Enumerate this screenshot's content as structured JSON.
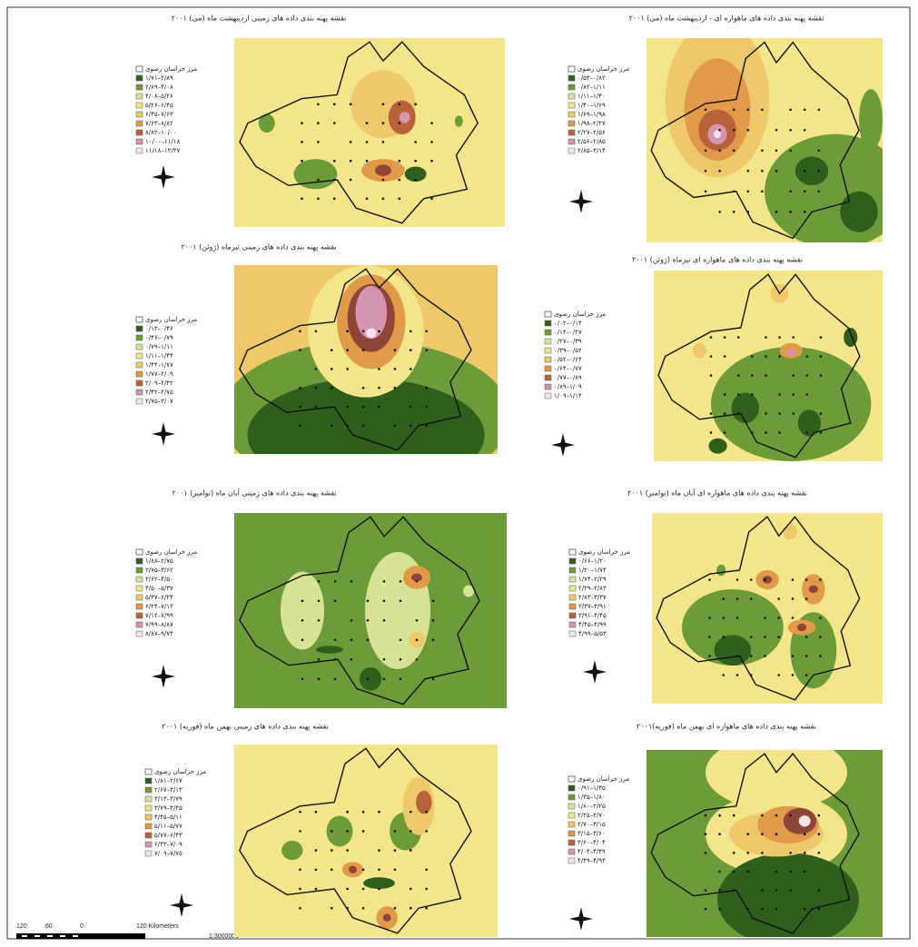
{
  "panels": [
    {
      "title": "نقشه پهنه بندی داده های زمینی اردیبهشت ماه (می) ۲۰۰۱",
      "legend_title": "مرز خراسان رضوی",
      "legend": [
        "۱/۷۱–۲/۸۹",
        "۲/۸۹–۴/۰۸",
        "۴/۰۸–۵/۲۶",
        "۵/۲۶–۶/۴۵",
        "۶/۴۵–۷/۶۳",
        "۷/۶۳–۸/۸۲",
        "۸/۸۲–۱۰/۰۰",
        "۱۰/۰۰–۱۱/۱۸",
        "۱۱/۱۸–۱۲/۳۷"
      ]
    },
    {
      "title": "نقشه پهنه بندی داده های ماهواره ای - اردیبهشت ماه (می) ۲۰۰۱",
      "legend_title": "مرز خراسان رضوی",
      "legend": [
        "۰/۵۳–۰/۸۲",
        "۰/۸۲–۱/۱۱",
        "۱/۱۱–۱/۴۰",
        "۱/۴۰–۱/۶۹",
        "۱/۶۹–۱/۹۸",
        "۱/۹۸–۲/۲۷",
        "۲/۲۷–۲/۵۶",
        "۲/۵۶–۲/۸۵",
        "۲/۸۵–۳/۱۴"
      ]
    },
    {
      "title": "نقشه پهنه بندی داده های زمینی تیرماه (ژوئن) ۲۰۰۱",
      "legend_title": "مرز خراسان رضوی",
      "legend": [
        "۰/۱۳–۰/۴۶",
        "۰/۴۶–۰/۷۹",
        "۰/۷۹–۱/۱۱",
        "۱/۱۱–۱/۴۴",
        "۱/۴۴–۱/۷۷",
        "۱/۷۷–۲/۰۹",
        "۲/۰۹–۲/۴۲",
        "۲/۴۲–۲/۷۵",
        "۲/۷۵–۳/۰۷"
      ]
    },
    {
      "title": "نقشه پهنه بندی داده های ماهواره ای تیرماه (ژوئن) ۲۰۰۱",
      "legend_title": "مرز خراسان رضوی",
      "legend": [
        "۰/۰۲–۰/۱۴",
        "۰/۱۴–۰/۲۷",
        "۰/۲۷–۰/۳۹",
        "۰/۳۹–۰/۵۲",
        "۰/۵۲–۰/۶۴",
        "۰/۶۴–۰/۷۷",
        "۰/۷۷–۰/۸۹",
        "۰/۸۹–۱/۰۹",
        "۱/۰۹–۱/۱۴"
      ]
    },
    {
      "title": "نقشه پهنه بندی داده های زمینی آبان ماه (نوامبر) ۲۰۰۱",
      "legend_title": "مرز خراسان رضوی",
      "legend": [
        "۱/۸۸–۲/۷۵",
        "۲/۷۵–۳/۶۲",
        "۳/۶۲–۴/۵۰",
        "۴/۵۰–۵/۳۷",
        "۵/۳۷–۶/۲۴",
        "۶/۲۴–۷/۱۲",
        "۷/۱۲–۷/۹۹",
        "۷/۹۹–۸/۸۷",
        "۸/۸۷–۹/۷۴"
      ]
    },
    {
      "title": "نقشه پهنه بندی داده های ماهواره ای آبان ماه (نوامبر) ۲۰۰۱",
      "legend_title": "مرز خراسان رضوی",
      "legend": [
        "۰/۶۶–۱/۲۰",
        "۱/۲۰–۱/۷۴",
        "۱/۷۴–۲/۲۹",
        "۲/۲۹–۲/۸۳",
        "۲/۸۳–۳/۳۷",
        "۳/۳۷–۳/۹۱",
        "۳/۹۱–۴/۴۵",
        "۴/۴۵–۴/۹۹",
        "۴/۹۹–۵/۵۳"
      ]
    },
    {
      "title": "نقشه پهنه بندی داده های زمینی بهمن ماه (فوریه) ۲۰۰۱",
      "legend_title": "مرز خراسان رضوی",
      "legend": [
        "۱/۸۱–۲/۶۷",
        "۲/۶۷–۳/۱۳",
        "۳/۱۳–۳/۷۹",
        "۳/۷۹–۴/۴۵",
        "۴/۴۵–۵/۱۱",
        "۵/۱۱–۵/۷۷",
        "۵/۷۷–۶/۴۳",
        "۶/۴۳–۷/۰۹",
        "۷/۰۹–۷/۷۵"
      ]
    },
    {
      "title": "نقشه پهنه بندی داده های ماهواره ای بهمن ماه (فوریه)۲۰۰۱",
      "legend_title": "مرز خراسان رضوی",
      "legend": [
        "۰/۹۱–۱/۳۵",
        "۱/۳۵–۱/۸۰",
        "۱/۸۰–۲/۲۵",
        "۲/۲۵–۲/۷۰",
        "۲/۷۰–۳/۱۵",
        "۳/۱۵–۳/۶۰",
        "۳/۶۰–۴/۰۴",
        "۴/۰۴–۴/۴۹",
        "۴/۴۹–۴/۹۴"
      ]
    }
  ],
  "scale_bar": {
    "labels": [
      "120",
      "60",
      "0",
      "120 Kilometers"
    ],
    "ratio": "1:3000000"
  }
}
